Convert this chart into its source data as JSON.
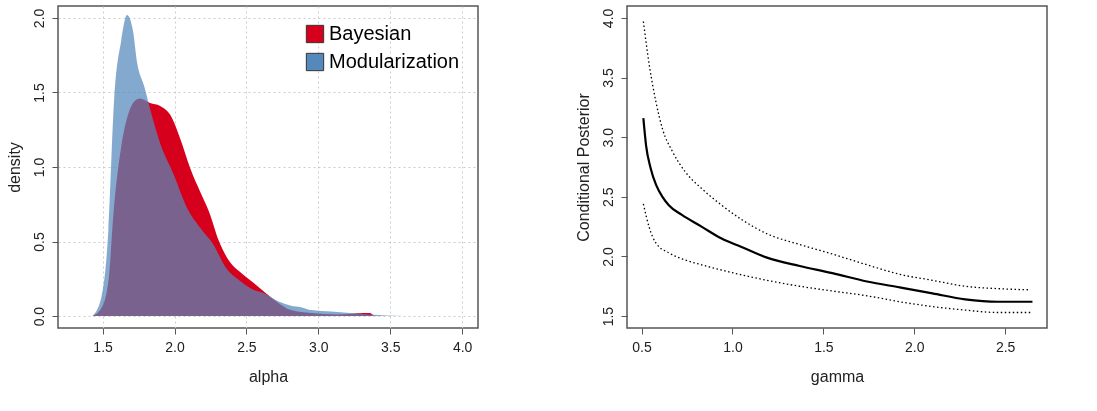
{
  "chart_data": [
    {
      "type": "area",
      "xlabel": "alpha",
      "ylabel": "density",
      "xlim": [
        1.19,
        4.11
      ],
      "ylim": [
        -0.08,
        2.08
      ],
      "xticks": [
        1.5,
        {
          "value": 2,
          "label": "2.0"
        },
        2.5,
        {
          "value": 3,
          "label": "3.0"
        },
        3.5,
        {
          "value": 4,
          "label": "4.0"
        }
      ],
      "yticks": [
        {
          "value": 0,
          "label": "0.0"
        },
        0.5,
        {
          "value": 1,
          "label": "1.0"
        },
        1.5,
        {
          "value": 2,
          "label": "2.0"
        }
      ],
      "grid": true,
      "legend": "top right",
      "series": [
        {
          "name": "Bayesian",
          "color": "#d7001c",
          "x": [
            1.43,
            1.49,
            1.54,
            1.58,
            1.63,
            1.68,
            1.72,
            1.76,
            1.83,
            1.9,
            1.97,
            2.04,
            2.11,
            2.18,
            2.24,
            2.31,
            2.38,
            2.45,
            2.54,
            2.64,
            2.72,
            2.81,
            2.95,
            3.13,
            3.32,
            3.36,
            3.39,
            3.59
          ],
          "values": [
            0,
            0.05,
            0.23,
            0.74,
            1.14,
            1.36,
            1.44,
            1.46,
            1.43,
            1.41,
            1.35,
            1.19,
            0.99,
            0.83,
            0.7,
            0.5,
            0.37,
            0.3,
            0.23,
            0.15,
            0.09,
            0.04,
            0.02,
            0.01,
            0.02,
            0.02,
            0.0,
            0
          ]
        },
        {
          "name": "Modularization",
          "color": "#5588bb",
          "x": [
            1.43,
            1.49,
            1.54,
            1.58,
            1.63,
            1.67,
            1.71,
            1.74,
            1.79,
            1.83,
            1.9,
            1.99,
            2.09,
            2.18,
            2.27,
            2.36,
            2.45,
            2.54,
            2.63,
            2.72,
            2.81,
            2.88,
            2.95,
            3.09,
            3.22,
            3.36,
            3.59,
            3.73
          ],
          "values": [
            0,
            0.12,
            0.57,
            1.45,
            1.85,
            2.02,
            1.92,
            1.7,
            1.54,
            1.39,
            1.16,
            0.96,
            0.72,
            0.59,
            0.48,
            0.32,
            0.24,
            0.18,
            0.15,
            0.1,
            0.07,
            0.06,
            0.04,
            0.03,
            0.02,
            0.01,
            0.0,
            0
          ]
        }
      ]
    },
    {
      "type": "line",
      "xlabel": "gamma",
      "ylabel": "Conditional Posterior",
      "xlim": [
        0.42,
        2.73
      ],
      "ylim": [
        1.4,
        4.1
      ],
      "xticks": [
        0.5,
        {
          "value": 1,
          "label": "1.0"
        },
        1.5,
        {
          "value": 2,
          "label": "2.0"
        },
        2.5
      ],
      "yticks": [
        1.5,
        {
          "value": 2,
          "label": "2.0"
        },
        2.5,
        {
          "value": 3,
          "label": "3.0"
        },
        3.5,
        {
          "value": 4,
          "label": "4.0"
        }
      ],
      "grid": false,
      "legend": false,
      "marker": "none",
      "series": [
        {
          "color": "#000000",
          "line_style": "solid",
          "x": [
            0.51,
            0.525,
            0.55,
            0.58,
            0.615,
            0.65,
            0.72,
            0.83,
            0.94,
            1.05,
            1.19,
            1.37,
            1.55,
            1.74,
            1.92,
            2.1,
            2.28,
            2.46,
            2.65
          ],
          "values": [
            3.16,
            2.93,
            2.74,
            2.6,
            2.5,
            2.43,
            2.35,
            2.25,
            2.15,
            2.08,
            1.99,
            1.92,
            1.86,
            1.79,
            1.74,
            1.69,
            1.64,
            1.62,
            1.62
          ]
        },
        {
          "color": "#000000",
          "line_style": "dotted",
          "x": [
            0.51,
            0.543,
            0.58,
            0.615,
            0.67,
            0.74,
            0.83,
            0.94,
            1.05,
            1.19,
            1.37,
            1.55,
            1.74,
            1.92,
            2.1,
            2.28,
            2.46,
            2.64
          ],
          "values": [
            3.97,
            3.6,
            3.29,
            3.07,
            2.88,
            2.71,
            2.57,
            2.43,
            2.31,
            2.19,
            2.1,
            2.02,
            1.93,
            1.85,
            1.8,
            1.75,
            1.73,
            1.72
          ]
        },
        {
          "color": "#000000",
          "line_style": "dotted",
          "x": [
            0.51,
            0.543,
            0.58,
            0.65,
            0.74,
            0.83,
            1.01,
            1.19,
            1.37,
            1.55,
            1.74,
            1.92,
            2.1,
            2.28,
            2.46,
            2.64
          ],
          "values": [
            2.44,
            2.24,
            2.11,
            2.03,
            1.97,
            1.93,
            1.86,
            1.8,
            1.75,
            1.71,
            1.67,
            1.62,
            1.58,
            1.55,
            1.53,
            1.53
          ]
        }
      ]
    }
  ]
}
